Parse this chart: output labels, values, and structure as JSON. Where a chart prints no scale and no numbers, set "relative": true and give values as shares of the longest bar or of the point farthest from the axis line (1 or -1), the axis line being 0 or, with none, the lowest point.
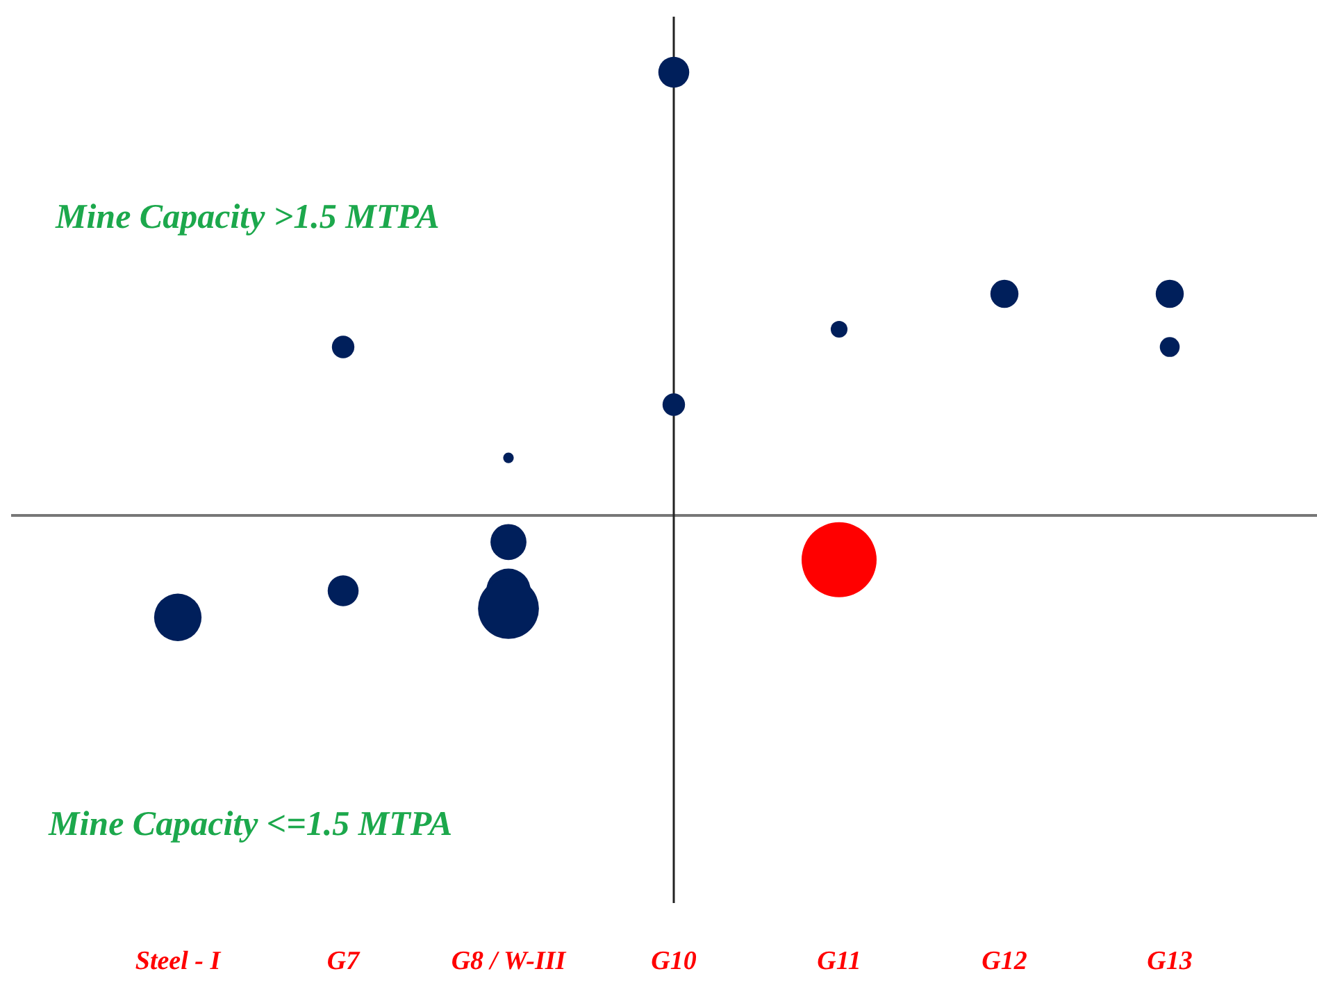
{
  "chart_data": {
    "type": "bubble",
    "relative": true,
    "categories": [
      "Steel - I",
      "G7",
      "G8 / W-III",
      "G10",
      "G11",
      "G12",
      "G13"
    ],
    "series": [
      {
        "color": "#001f5b",
        "x": [
          "Steel - I",
          "G7",
          "G7",
          "G8 / W-III",
          "G8 / W-III",
          "G8 / W-III",
          "G8 / W-III",
          "G10",
          "G10",
          "G11",
          "G12",
          "G13",
          "G13"
        ],
        "values": [
          -0.23,
          0.38,
          -0.17,
          0.13,
          -0.06,
          -0.17,
          -0.21,
          1,
          0.25,
          0.42,
          0.5,
          0.5,
          0.38
        ],
        "sizes": [
          0.4,
          0.09,
          0.17,
          0.02,
          0.23,
          0.35,
          0.66,
          0.17,
          0.09,
          0.05,
          0.14,
          0.14,
          0.07
        ]
      },
      {
        "color": "#ff0000",
        "x": [
          "G11"
        ],
        "values": [
          -0.1
        ],
        "sizes": [
          1
        ]
      }
    ],
    "annotations": [
      "Mine Capacity >1.5 MTPA",
      "Mine Capacity <=1.5 MTPA"
    ]
  }
}
